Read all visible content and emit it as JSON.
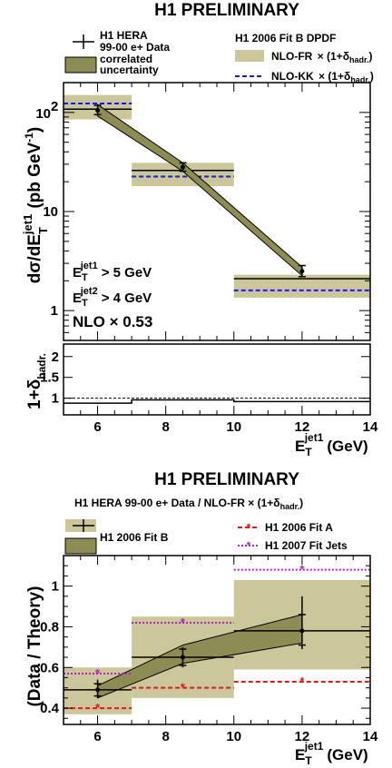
{
  "colors": {
    "band": "#cbc79a",
    "nlo_fr_line": "#000000",
    "kk": "#1a1ae6",
    "corr": "#8e8c55",
    "fitA": "#d81e1e",
    "fitJets": "#b51fc4",
    "ink": "#000000"
  },
  "chart_data": [
    {
      "type": "line",
      "title": "H1 PRELIMINARY",
      "ylabel_main": "dσ/dE",
      "ylabel_sup": "jet1",
      "ylabel_sub": "T",
      "ylabel_units_pre": "(pb GeV",
      "ylabel_units_exp": "-1",
      "ylabel_units_post": ")",
      "yscale": "log",
      "ylim": [
        0.5,
        200
      ],
      "xlim": [
        5,
        14
      ],
      "yticks": [
        "1",
        "10",
        "10"
      ],
      "ytick_exp": "2",
      "legend_left": {
        "data_label_1": "H1 HERA",
        "data_label_2": "99-00 e+ Data",
        "corr_label_1": "correlated",
        "corr_label_2": "uncertainty"
      },
      "legend_right": {
        "header": "H1 2006 Fit B DPDF",
        "fr_label": "NLO-FR",
        "kk_label": "NLO-KK",
        "factor_text": "× (1+δ",
        "factor_sub": "hadr.",
        "factor_close": ")"
      },
      "cuts": {
        "cut1_pre": "E",
        "cut1_sup": "jet1",
        "cut1_sub": "T",
        "cut1_post": "> 5 GeV",
        "cut2_pre": "E",
        "cut2_sup": "jet2",
        "cut2_sub": "T",
        "cut2_post": "> 4 GeV",
        "nlo_scale": "NLO × 0.53"
      },
      "bins": [
        [
          5,
          7
        ],
        [
          7,
          10
        ],
        [
          10,
          14
        ]
      ],
      "x": [
        6,
        8.5,
        12
      ],
      "data": [
        105,
        28,
        2.5
      ],
      "stat_err": [
        [
          95,
          118
        ],
        [
          25.5,
          31
        ],
        [
          2.2,
          2.85
        ]
      ],
      "corr_band": {
        "x": [
          6,
          8.5,
          12
        ],
        "low": [
          92,
          25.5,
          2.25
        ],
        "high": [
          120,
          31,
          2.75
        ]
      },
      "nlo_fr": {
        "central": [
          108,
          26,
          2.1
        ],
        "low": [
          85,
          18,
          1.35
        ],
        "high": [
          150,
          31,
          2.3
        ]
      },
      "nlo_kk": [
        123,
        22.5,
        1.6
      ]
    },
    {
      "type": "line",
      "ylabel_pre": "1+δ",
      "ylabel_sub": "hadr.",
      "ylim": [
        0.6,
        2.3
      ],
      "yticks": [
        1,
        1.5,
        2
      ],
      "bins": [
        [
          5,
          7
        ],
        [
          7,
          10
        ],
        [
          10,
          14
        ]
      ],
      "values": [
        0.88,
        0.96,
        0.92
      ],
      "reference": 1
    },
    {
      "type": "line",
      "title": "H1 PRELIMINARY",
      "subtitle": "H1 HERA 99-00 e+ Data / NLO-FR × (1+δ",
      "subtitle_sub": "hadr.",
      "subtitle_close": ")",
      "ylabel": "(Data / Theory)",
      "ylim": [
        0.32,
        1.15
      ],
      "yticks": [
        0.4,
        0.6,
        0.8,
        1
      ],
      "ytick_labels": [
        "0.4",
        "0.6",
        "0.8",
        "1"
      ],
      "xlim": [
        5,
        14
      ],
      "xticks": [
        6,
        8,
        10,
        12,
        14
      ],
      "xlabel_pre": "E",
      "xlabel_sup": "jet1",
      "xlabel_sub": "T",
      "xlabel_post": "(GeV)",
      "legend": {
        "fitb": "H1 2006 Fit B",
        "fita": "H1 2006 Fit A",
        "fitjets": "H1 2007 Fit Jets"
      },
      "bins": [
        [
          5,
          7
        ],
        [
          7,
          10
        ],
        [
          10,
          14
        ]
      ],
      "x": [
        6,
        8.5,
        12
      ],
      "ratio": [
        0.49,
        0.65,
        0.78
      ],
      "stat_err": [
        [
          0.46,
          0.52
        ],
        [
          0.61,
          0.69
        ],
        [
          0.71,
          0.86
        ]
      ],
      "total_err": [
        [
          0.45,
          0.54
        ],
        [
          0.6,
          0.7
        ],
        [
          0.69,
          0.95
        ]
      ],
      "band": {
        "low": [
          0.37,
          0.45,
          0.59
        ],
        "high": [
          0.6,
          0.85,
          1.03
        ]
      },
      "corr_band": {
        "low": [
          0.45,
          0.62,
          0.72
        ],
        "high": [
          0.51,
          0.71,
          0.86
        ]
      },
      "fit_a": [
        0.4,
        0.5,
        0.53
      ],
      "fit_jets": [
        0.57,
        0.82,
        1.08
      ]
    }
  ]
}
